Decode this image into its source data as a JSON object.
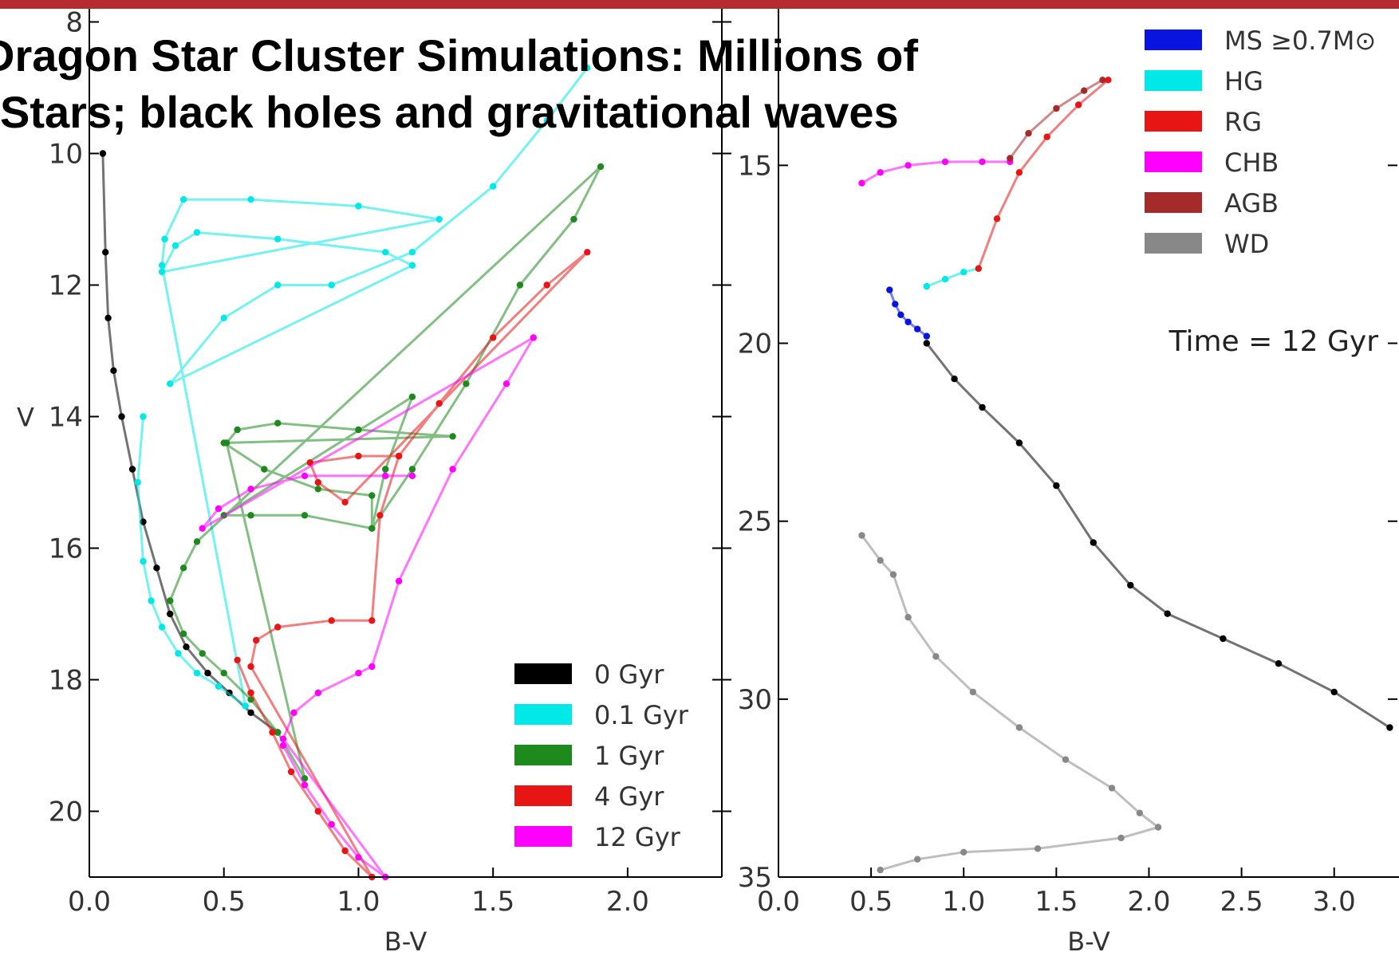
{
  "slide": {
    "title": "Dragon Star Cluster Simulations: Millions of Stars; black holes and gravitational waves",
    "accent_color": "#b52b2f"
  },
  "chart_data": [
    {
      "type": "scatter",
      "xlabel": "B-V",
      "ylabel": "V",
      "xlim": [
        0.0,
        2.35
      ],
      "ylim": [
        21.0,
        7.8
      ],
      "y_inverted": true,
      "xticks": [
        "0.0",
        "0.5",
        "1.0",
        "1.5",
        "2.0"
      ],
      "yticks": [
        "8",
        "10",
        "12",
        "14",
        "16",
        "18",
        "20"
      ],
      "legend_position": "lower-right",
      "series": [
        {
          "name": "0 Gyr",
          "color": "#000000",
          "x": [
            0.05,
            0.06,
            0.07,
            0.09,
            0.12,
            0.16,
            0.2,
            0.25,
            0.3,
            0.36,
            0.44,
            0.52,
            0.6,
            0.7
          ],
          "y": [
            10.0,
            11.5,
            12.5,
            13.3,
            14.0,
            14.8,
            15.6,
            16.3,
            17.0,
            17.5,
            17.9,
            18.2,
            18.5,
            18.8
          ]
        },
        {
          "name": "0.1 Gyr",
          "color": "#00e8e8",
          "x": [
            0.2,
            0.18,
            0.2,
            0.23,
            0.27,
            0.33,
            0.4,
            0.48,
            0.58,
            0.27,
            0.28,
            0.35,
            0.6,
            1.0,
            1.3,
            0.27,
            0.32,
            0.4,
            0.7,
            1.1,
            1.2,
            0.3,
            0.5,
            0.7,
            0.9,
            1.2,
            1.5,
            1.7,
            1.85
          ],
          "y": [
            14.0,
            15.0,
            16.2,
            16.8,
            17.2,
            17.6,
            17.9,
            18.1,
            18.4,
            11.7,
            11.3,
            10.7,
            10.7,
            10.8,
            11.0,
            11.8,
            11.4,
            11.2,
            11.3,
            11.5,
            11.7,
            13.5,
            12.5,
            12.0,
            12.0,
            11.5,
            10.5,
            9.5,
            8.7
          ]
        },
        {
          "name": "1 Gyr",
          "color": "#1e8a1e",
          "x": [
            0.3,
            0.35,
            0.42,
            0.5,
            0.6,
            0.7,
            0.8,
            0.51,
            0.55,
            0.7,
            1.0,
            1.35,
            0.5,
            0.65,
            0.85,
            1.05,
            1.05,
            1.1,
            1.2,
            0.5,
            0.6,
            0.8,
            1.05,
            1.2,
            1.4,
            1.6,
            1.8,
            1.9,
            0.4,
            0.35,
            0.3
          ],
          "y": [
            16.8,
            17.3,
            17.6,
            17.9,
            18.3,
            18.8,
            19.5,
            14.4,
            14.2,
            14.1,
            14.2,
            14.3,
            14.4,
            14.8,
            15.1,
            15.2,
            15.7,
            14.8,
            13.7,
            15.5,
            15.5,
            15.5,
            15.7,
            14.8,
            13.5,
            12.0,
            11.0,
            10.2,
            15.9,
            16.3,
            16.8
          ]
        },
        {
          "name": "4 Gyr",
          "color": "#e81515",
          "x": [
            0.55,
            0.6,
            0.68,
            0.75,
            0.85,
            0.95,
            1.05,
            0.6,
            0.62,
            0.7,
            0.9,
            1.05,
            1.08,
            1.15,
            1.3,
            1.5,
            1.7,
            1.85,
            0.95,
            0.85,
            0.82,
            1.0,
            1.15
          ],
          "y": [
            17.7,
            18.2,
            18.8,
            19.4,
            20.0,
            20.6,
            21.0,
            17.8,
            17.4,
            17.2,
            17.1,
            17.1,
            15.5,
            14.6,
            13.8,
            12.8,
            12.0,
            11.5,
            15.3,
            15.0,
            14.7,
            14.6,
            14.6
          ]
        },
        {
          "name": "12 Gyr",
          "color": "#ff00ff",
          "x": [
            0.72,
            0.8,
            0.9,
            1.0,
            1.1,
            0.72,
            0.76,
            0.85,
            1.0,
            1.05,
            1.15,
            1.35,
            1.55,
            1.65,
            0.42,
            0.48,
            0.6,
            0.8,
            1.1,
            1.2
          ],
          "y": [
            19.0,
            19.6,
            20.2,
            20.7,
            21.0,
            18.9,
            18.5,
            18.2,
            17.9,
            17.8,
            16.5,
            14.8,
            13.5,
            12.8,
            15.7,
            15.4,
            15.1,
            14.9,
            14.9,
            14.9
          ]
        }
      ]
    },
    {
      "type": "scatter",
      "xlabel": "B-V",
      "ylabel": "",
      "xlim": [
        0.0,
        3.35
      ],
      "ylim": [
        35.0,
        10.6
      ],
      "y_inverted": true,
      "xticks": [
        "0.0",
        "0.5",
        "1.0",
        "1.5",
        "2.0",
        "2.5",
        "3.0"
      ],
      "yticks": [
        "15",
        "20",
        "25",
        "30",
        "35"
      ],
      "annotation": "Time = 12 Gyr",
      "legend_position": "top-right",
      "series": [
        {
          "name": "MS ≥0.7M⊙",
          "color": "#0a14e0",
          "x": [
            0.6,
            0.63,
            0.66,
            0.7,
            0.75,
            0.8
          ],
          "y": [
            18.5,
            18.9,
            19.2,
            19.4,
            19.6,
            19.8
          ]
        },
        {
          "name": "HG",
          "color": "#00e8e8",
          "x": [
            0.8,
            0.9,
            1.0,
            1.08
          ],
          "y": [
            18.4,
            18.2,
            18.0,
            17.9
          ]
        },
        {
          "name": "RG",
          "color": "#e81515",
          "x": [
            1.08,
            1.18,
            1.3,
            1.45,
            1.62,
            1.78
          ],
          "y": [
            17.9,
            16.5,
            15.2,
            14.2,
            13.3,
            12.6
          ]
        },
        {
          "name": "CHB",
          "color": "#ff00ff",
          "x": [
            0.45,
            0.55,
            0.7,
            0.9,
            1.1,
            1.25
          ],
          "y": [
            15.5,
            15.2,
            15.0,
            14.9,
            14.9,
            14.9
          ]
        },
        {
          "name": "AGB",
          "color": "#a52a2a",
          "x": [
            1.25,
            1.35,
            1.5,
            1.65,
            1.75
          ],
          "y": [
            14.8,
            14.1,
            13.4,
            12.9,
            12.6
          ]
        },
        {
          "name": "WD",
          "color": "#888888",
          "x": [
            0.45,
            0.55,
            0.62,
            0.7,
            0.85,
            1.05,
            1.3,
            1.55,
            1.8,
            1.95,
            2.05,
            1.85,
            1.4,
            1.0,
            0.75,
            0.55
          ],
          "y": [
            25.4,
            26.1,
            26.5,
            27.7,
            28.8,
            29.8,
            30.8,
            31.7,
            32.5,
            33.2,
            33.6,
            33.9,
            34.2,
            34.3,
            34.5,
            34.8
          ]
        },
        {
          "name": "",
          "color": "#000000",
          "x": [
            0.8,
            0.95,
            1.1,
            1.3,
            1.5,
            1.7,
            1.9,
            2.1,
            2.4,
            2.7,
            3.0,
            3.3
          ],
          "y": [
            20.0,
            21.0,
            21.8,
            22.8,
            24.0,
            25.6,
            26.8,
            27.6,
            28.3,
            29.0,
            29.8,
            30.8
          ]
        }
      ]
    }
  ]
}
